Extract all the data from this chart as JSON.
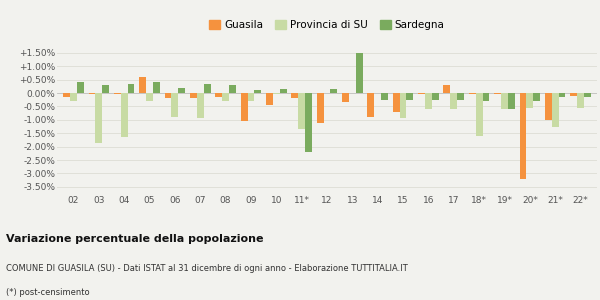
{
  "years": [
    "02",
    "03",
    "04",
    "05",
    "06",
    "07",
    "08",
    "09",
    "10",
    "11*",
    "12",
    "13",
    "14",
    "15",
    "16",
    "17",
    "18*",
    "19*",
    "20*",
    "21*",
    "22*"
  ],
  "guasila": [
    -0.15,
    -0.05,
    -0.05,
    0.6,
    -0.2,
    -0.2,
    -0.15,
    -1.05,
    -0.45,
    -0.2,
    -1.1,
    -0.35,
    -0.9,
    -0.7,
    -0.05,
    0.3,
    -0.05,
    -0.05,
    -3.2,
    -1.0,
    -0.1
  ],
  "provincia_su": [
    -0.3,
    -1.85,
    -1.65,
    -0.3,
    -0.9,
    -0.95,
    -0.3,
    -0.3,
    -0.05,
    -1.35,
    0.0,
    0.0,
    0.0,
    -0.95,
    -0.6,
    -0.6,
    -1.6,
    -0.6,
    -0.55,
    -1.25,
    -0.55
  ],
  "sardegna": [
    0.4,
    0.3,
    0.35,
    0.4,
    0.2,
    0.35,
    0.3,
    0.1,
    0.15,
    -2.2,
    0.15,
    1.5,
    -0.25,
    -0.25,
    -0.25,
    -0.25,
    -0.3,
    -0.6,
    -0.3,
    -0.15,
    -0.15
  ],
  "guasila_color": "#f5923e",
  "provincia_color": "#c8dba4",
  "sardegna_color": "#7aab5e",
  "title1": "Variazione percentuale della popolazione",
  "title2": "COMUNE DI GUASILA (SU) - Dati ISTAT al 31 dicembre di ogni anno - Elaborazione TUTTITALIA.IT",
  "title3": "(*) post-censimento",
  "legend_labels": [
    "Guasila",
    "Provincia di SU",
    "Sardegna"
  ],
  "ytick_vals": [
    -3.5,
    -3.0,
    -2.5,
    -2.0,
    -1.5,
    -1.0,
    -0.5,
    0.0,
    0.5,
    1.0,
    1.5
  ],
  "ylim": [
    -3.75,
    1.85
  ],
  "bar_width": 0.27,
  "background_color": "#f2f2ee",
  "grid_color": "#e0e0d8"
}
